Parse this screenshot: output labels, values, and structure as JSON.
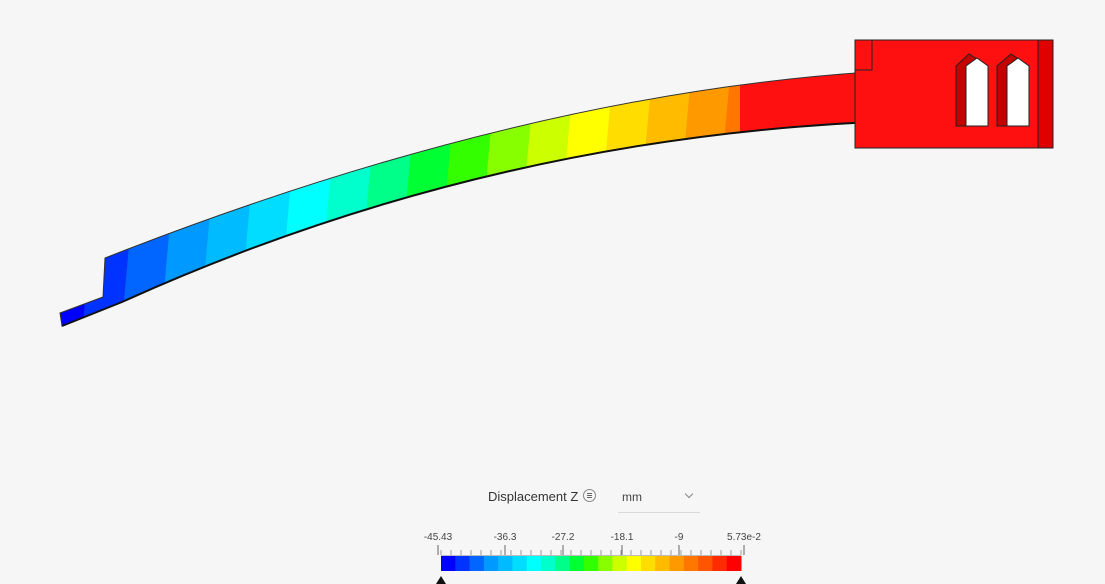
{
  "legend": {
    "title": "Displacement Z",
    "menu_icon": "list-icon",
    "unit": "mm",
    "unit_dropdown_icon": "chevron-down-icon",
    "tick_labels": [
      "-45.43",
      "-36.3",
      "-27.2",
      "-18.1",
      "-9",
      "5.73e-2"
    ],
    "min": -45.43,
    "max": 0.0573,
    "color_stops": [
      "#0000ff",
      "#0033ff",
      "#0066ff",
      "#0099ff",
      "#00bbff",
      "#00ddff",
      "#00ffff",
      "#00ffcc",
      "#00ff88",
      "#00ff33",
      "#33ff00",
      "#88ff00",
      "#ccff00",
      "#ffff00",
      "#ffdd00",
      "#ffbb00",
      "#ff9900",
      "#ff7700",
      "#ff5500",
      "#ff2a00",
      "#ff0000"
    ],
    "handles": [
      "min-handle",
      "max-handle"
    ]
  },
  "model": {
    "description_colors": {
      "high": "#ff1010",
      "low": "#0000ee",
      "edge": "#222222"
    }
  }
}
